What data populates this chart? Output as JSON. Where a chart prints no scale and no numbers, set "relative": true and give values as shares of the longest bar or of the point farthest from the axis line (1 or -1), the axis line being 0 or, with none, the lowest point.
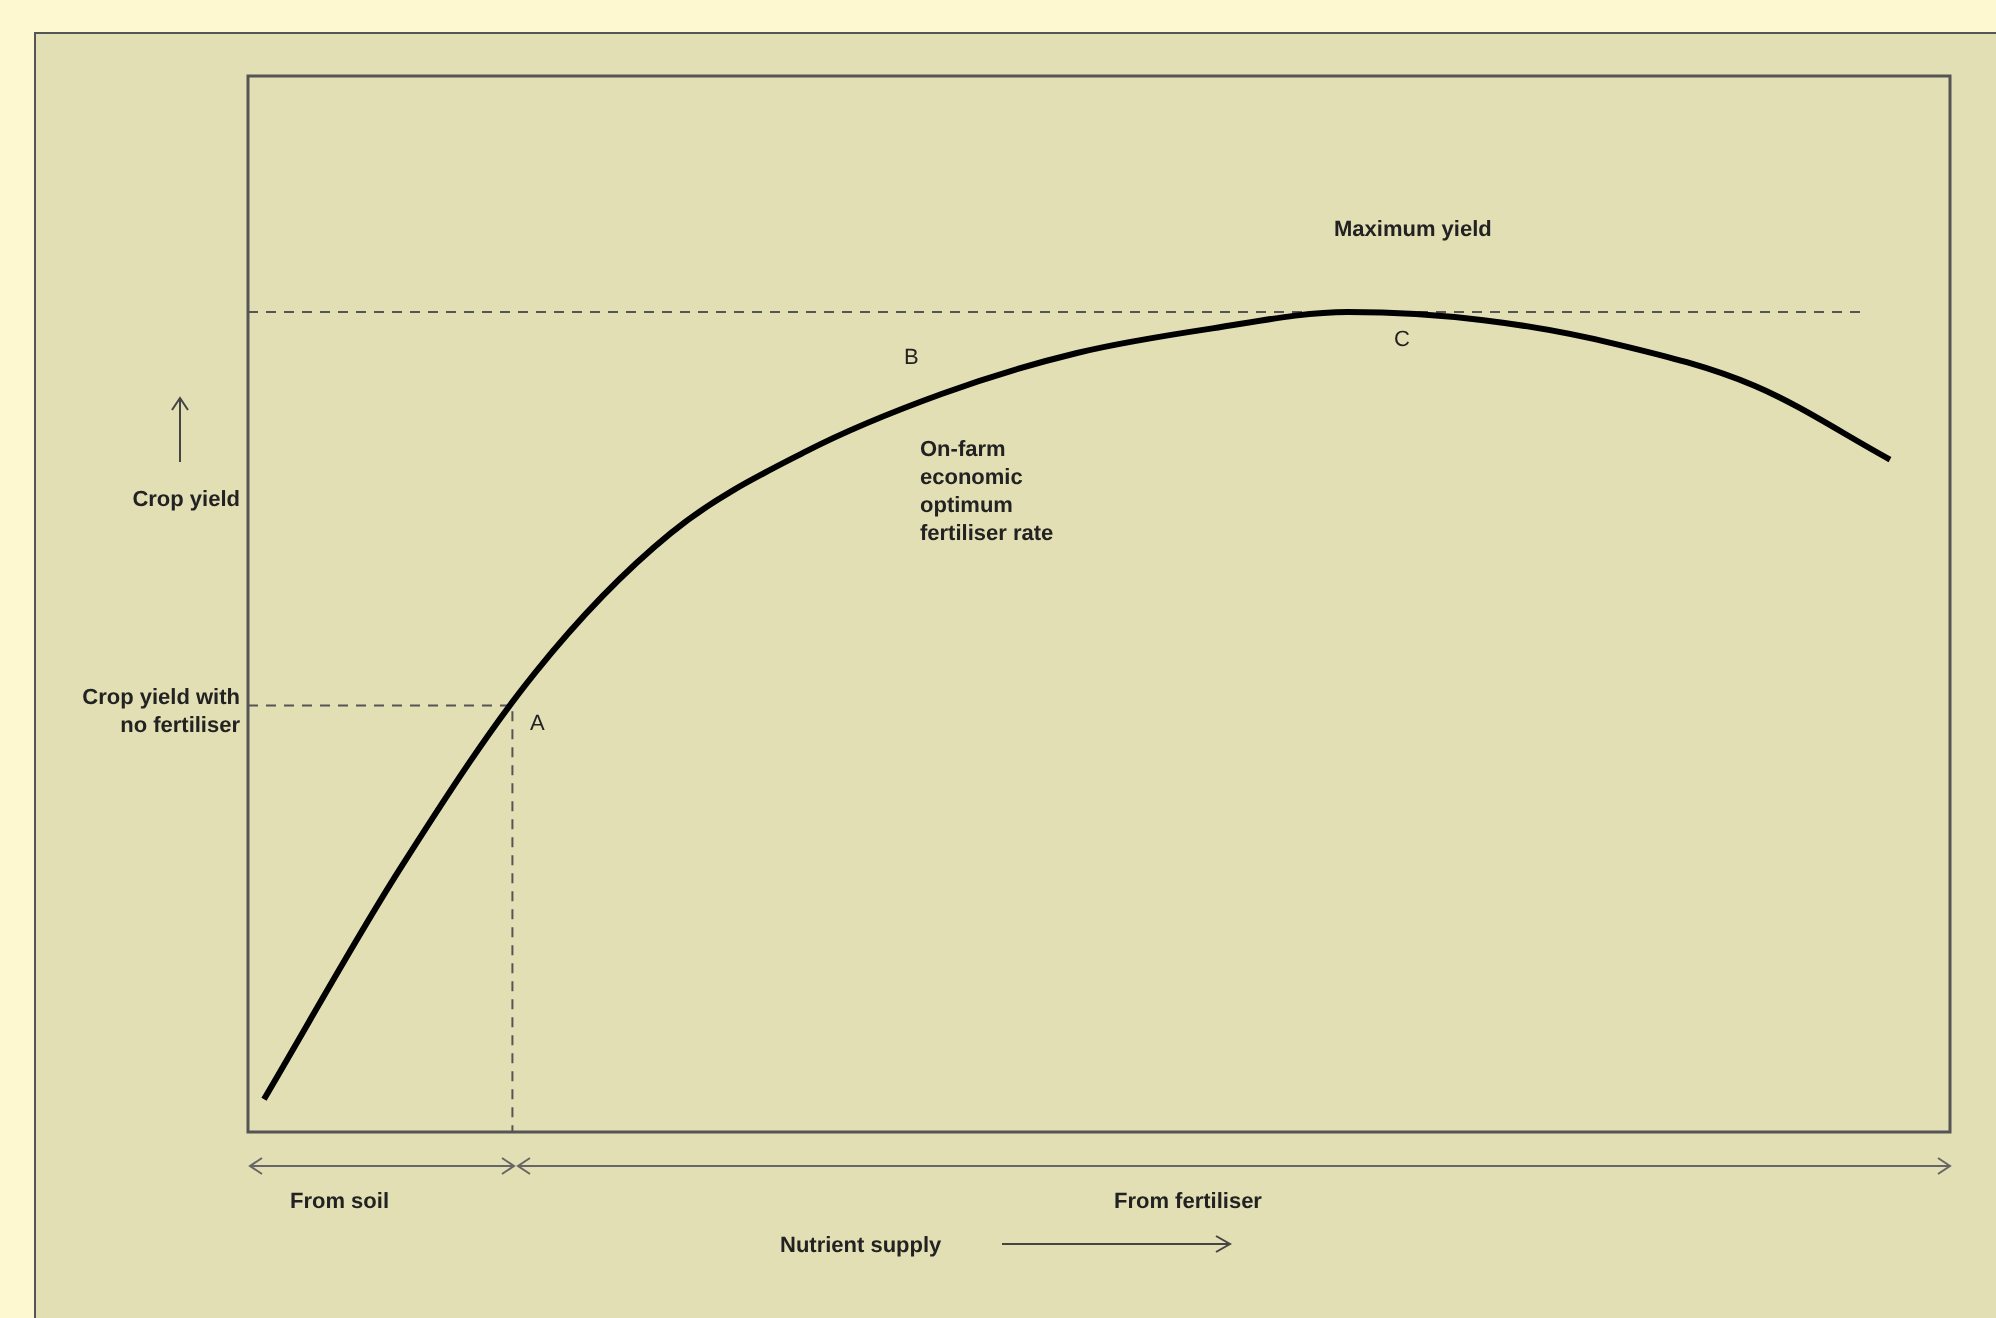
{
  "chart_data": {
    "type": "line",
    "relative": true,
    "marker": "none",
    "xlabel": "Nutrient supply",
    "ylabel": "Crop yield",
    "categories": [
      null,
      null,
      null,
      null,
      null,
      null,
      null,
      null,
      null,
      null,
      null,
      null,
      null
    ],
    "series": [
      {
        "color": "#000000",
        "values": [
          0.04,
          0.32,
          0.56,
          0.73,
          0.83,
          0.9,
          0.95,
          0.98,
          1.0,
          0.99,
          0.96,
          0.91,
          0.82
        ]
      }
    ],
    "ref_lines": [
      {
        "axis": "y",
        "value": 1.0,
        "color": "#555555",
        "line_style": "dashed"
      },
      {
        "axis": "y",
        "value": 0.52,
        "color": "#555555",
        "line_style": "dashed"
      }
    ],
    "annotations": [
      "Maximum yield",
      "A",
      "B",
      "C",
      "On-farm economic optimum fertiliser rate",
      "Crop yield with no fertiliser",
      "From soil",
      "From fertiliser"
    ]
  }
}
